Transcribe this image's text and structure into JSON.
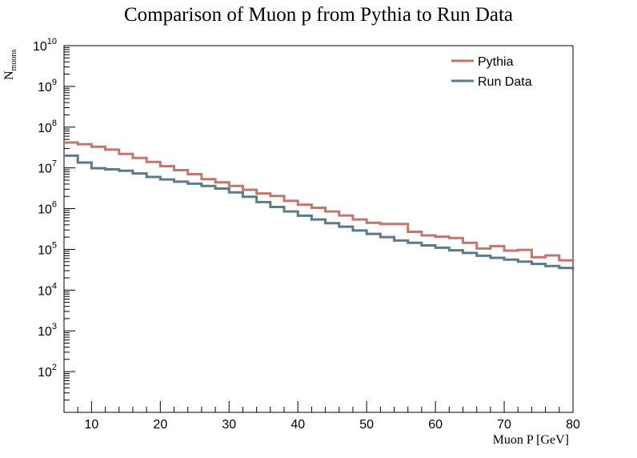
{
  "chart_data": {
    "type": "line",
    "title": "Comparison of Muon p from Pythia to Run Data",
    "xlabel": "Muon P [GeV]",
    "ylabel": {
      "main": "N",
      "sub": "muons"
    },
    "xlim": [
      6,
      80
    ],
    "ylim_log10": [
      1,
      10
    ],
    "log_y": true,
    "grid": false,
    "legend_position": "top-right",
    "x_ticks": [
      10,
      20,
      30,
      40,
      50,
      60,
      70,
      80
    ],
    "y_ticks": [
      {
        "base": "10",
        "exp": "2",
        "value": 100
      },
      {
        "base": "10",
        "exp": "3",
        "value": 1000
      },
      {
        "base": "10",
        "exp": "4",
        "value": 10000
      },
      {
        "base": "10",
        "exp": "5",
        "value": 100000
      },
      {
        "base": "10",
        "exp": "6",
        "value": 1000000
      },
      {
        "base": "10",
        "exp": "7",
        "value": 10000000
      },
      {
        "base": "10",
        "exp": "8",
        "value": 100000000
      },
      {
        "base": "10",
        "exp": "9",
        "value": 1000000000
      },
      {
        "base": "10",
        "exp": "10",
        "value": 10000000000
      }
    ],
    "bin_edges": [
      6,
      8,
      10,
      12,
      14,
      16,
      18,
      20,
      22,
      24,
      26,
      28,
      30,
      32,
      34,
      36,
      38,
      40,
      42,
      44,
      46,
      48,
      50,
      52,
      54,
      56,
      58,
      60,
      62,
      64,
      66,
      68,
      70,
      72,
      74,
      76,
      78,
      80
    ],
    "series": [
      {
        "name": "Pythia",
        "color": "#c0776e",
        "values": [
          42000000,
          38000000,
          33000000,
          28000000,
          22000000,
          17500000,
          14000000,
          11000000,
          8800000,
          7000000,
          5300000,
          4400000,
          3600000,
          2900000,
          2350000,
          2050000,
          1550000,
          1250000,
          1050000,
          850000,
          680000,
          540000,
          450000,
          420000,
          420000,
          270000,
          220000,
          205000,
          190000,
          145000,
          105000,
          120000,
          93000,
          97000,
          64000,
          71000,
          54000,
          48000
        ]
      },
      {
        "name": "Run Data",
        "color": "#5b7b8c",
        "values": [
          20000000,
          13500000,
          9800000,
          9200000,
          8500000,
          7300000,
          6000000,
          5200000,
          4600000,
          4100000,
          3600000,
          3100000,
          2500000,
          1950000,
          1450000,
          1100000,
          850000,
          670000,
          540000,
          440000,
          360000,
          290000,
          240000,
          200000,
          165000,
          145000,
          125000,
          110000,
          95000,
          82000,
          70000,
          62000,
          56000,
          50000,
          44000,
          39000,
          35000,
          31000
        ]
      }
    ]
  }
}
